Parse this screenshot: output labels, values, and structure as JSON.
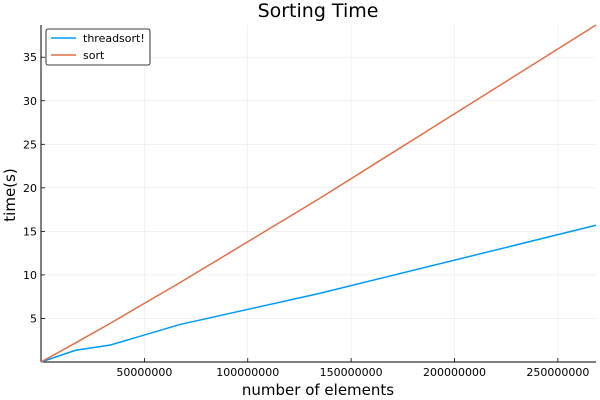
{
  "chart_data": {
    "type": "line",
    "title": "Sorting Time",
    "xlabel": "number of elements",
    "ylabel": "time(s)",
    "xlim": [
      0,
      268435456
    ],
    "ylim": [
      0,
      38.7
    ],
    "xticks": [
      50000000,
      100000000,
      150000000,
      200000000,
      250000000
    ],
    "yticks": [
      5,
      10,
      15,
      20,
      25,
      30,
      35
    ],
    "grid": true,
    "legend_position": "top-left",
    "series": [
      {
        "name": "threadsort!",
        "color": "#009AFA",
        "x": [
          0,
          16777216,
          33554432,
          67108864,
          134217728,
          268435456
        ],
        "y": [
          0.0,
          1.35,
          1.95,
          4.3,
          7.85,
          15.7
        ]
      },
      {
        "name": "sort",
        "color": "#E26F46",
        "x": [
          0,
          16777216,
          33554432,
          67108864,
          134217728,
          268435456
        ],
        "y": [
          0.0,
          2.2,
          4.45,
          9.1,
          18.7,
          38.7
        ]
      }
    ]
  }
}
